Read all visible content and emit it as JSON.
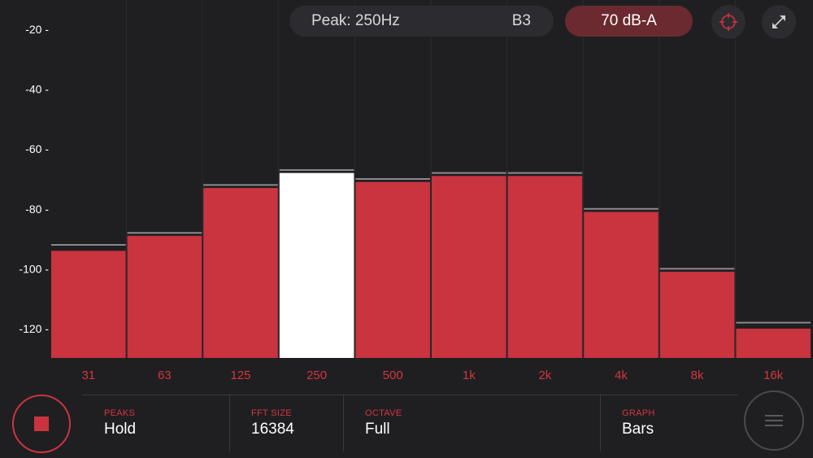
{
  "topbar": {
    "peak_label": "Peak: 250Hz",
    "note_label": "B3",
    "db_label": "70 dB-A",
    "target_icon": "crosshair-icon",
    "expand_icon": "expand-icon"
  },
  "chart_data": {
    "type": "bar",
    "ylabel": "",
    "xlabel": "",
    "ylim": [
      -130,
      -15
    ],
    "yticks": [
      -20,
      -40,
      -60,
      -80,
      -100,
      -120
    ],
    "ytick_labels": [
      "-20 -",
      "-40 -",
      "-60 -",
      "-80 -",
      "-100 -",
      "-120 -"
    ],
    "categories": [
      "31",
      "63",
      "125",
      "250",
      "500",
      "1k",
      "2k",
      "4k",
      "8k",
      "16k"
    ],
    "values": [
      -94,
      -89,
      -73,
      -68,
      -71,
      -69,
      -69,
      -81,
      -101,
      -120
    ],
    "peaks": [
      -92,
      -88,
      -72,
      -67,
      -70,
      -68,
      -68,
      -80,
      -100,
      -118
    ],
    "highlight_index": 3,
    "colors": {
      "bar": "#c9343f",
      "highlight": "#ffffff",
      "peak_line": "#8a8a8e",
      "grid": "#2c2c30",
      "tick_label": "#d4363f"
    }
  },
  "bottom": {
    "stop_icon": "stop-icon",
    "menu_icon": "hamburger-menu-icon",
    "peaks_title": "PEAKS",
    "peaks_value": "Hold",
    "fft_title": "FFT SIZE",
    "fft_value": "16384",
    "octave_title": "OCTAVE",
    "octave_value": "Full",
    "graph_title": "GRAPH",
    "graph_value": "Bars"
  }
}
